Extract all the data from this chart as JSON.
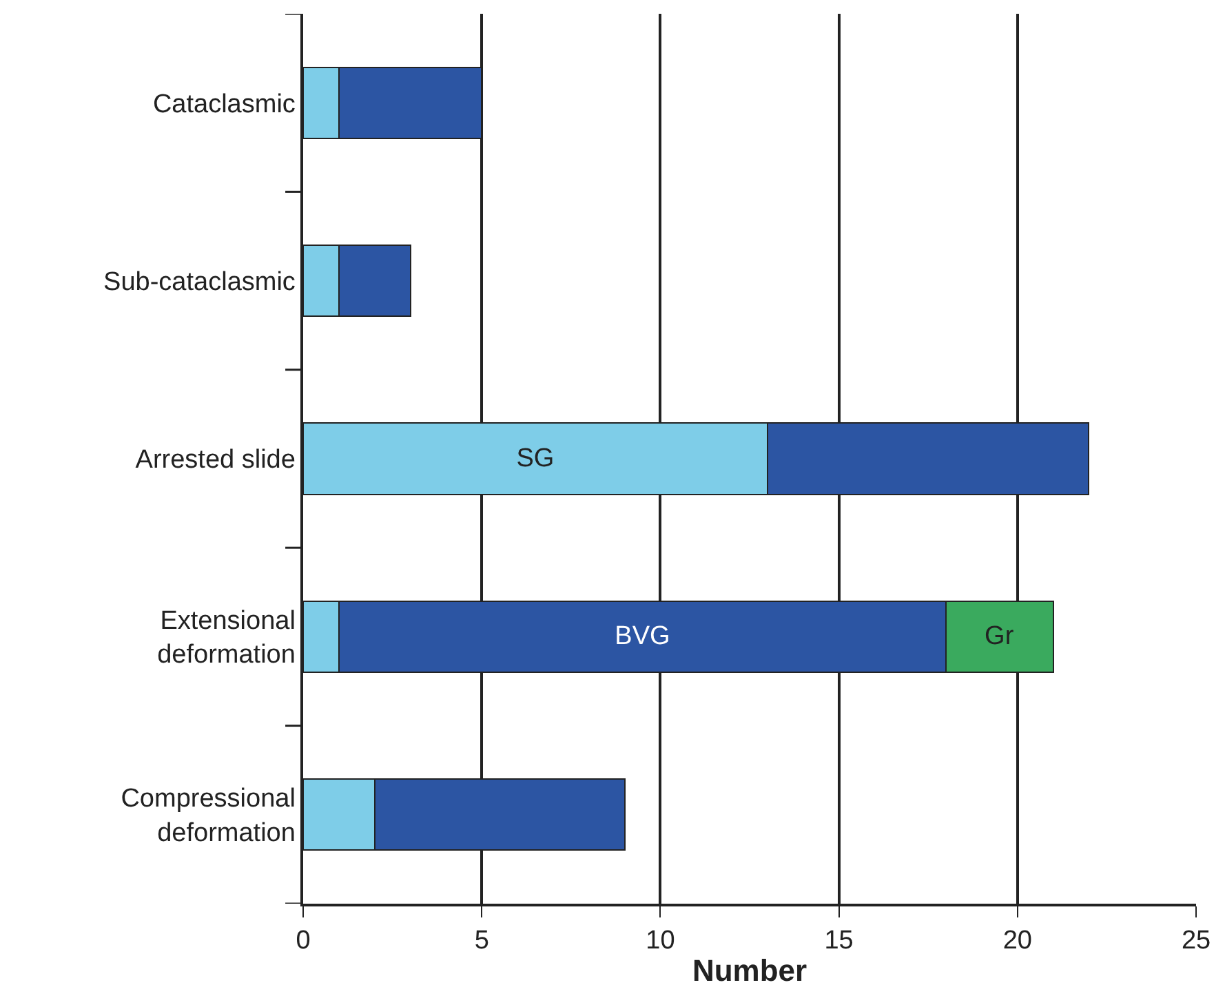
{
  "chart_data": {
    "type": "bar",
    "orientation": "horizontal",
    "stacked": true,
    "xlabel": "Number",
    "categories": [
      "Cataclasmic",
      "Sub-cataclasmic",
      "Arrested slide",
      "Extensional deformation",
      "Compressional deformation"
    ],
    "series": [
      {
        "name": "SG",
        "color": "#7ecde8",
        "values": [
          1,
          1,
          13,
          1,
          2
        ]
      },
      {
        "name": "BVG",
        "color": "#2c55a3",
        "values": [
          4,
          2,
          9,
          17,
          7
        ]
      },
      {
        "name": "Gr",
        "color": "#3aaa5e",
        "values": [
          null,
          null,
          null,
          3,
          null
        ]
      }
    ],
    "xlim": [
      0,
      25
    ],
    "xticks": [
      0,
      5,
      10,
      15,
      20,
      25
    ],
    "grid": "x",
    "legend": false
  }
}
